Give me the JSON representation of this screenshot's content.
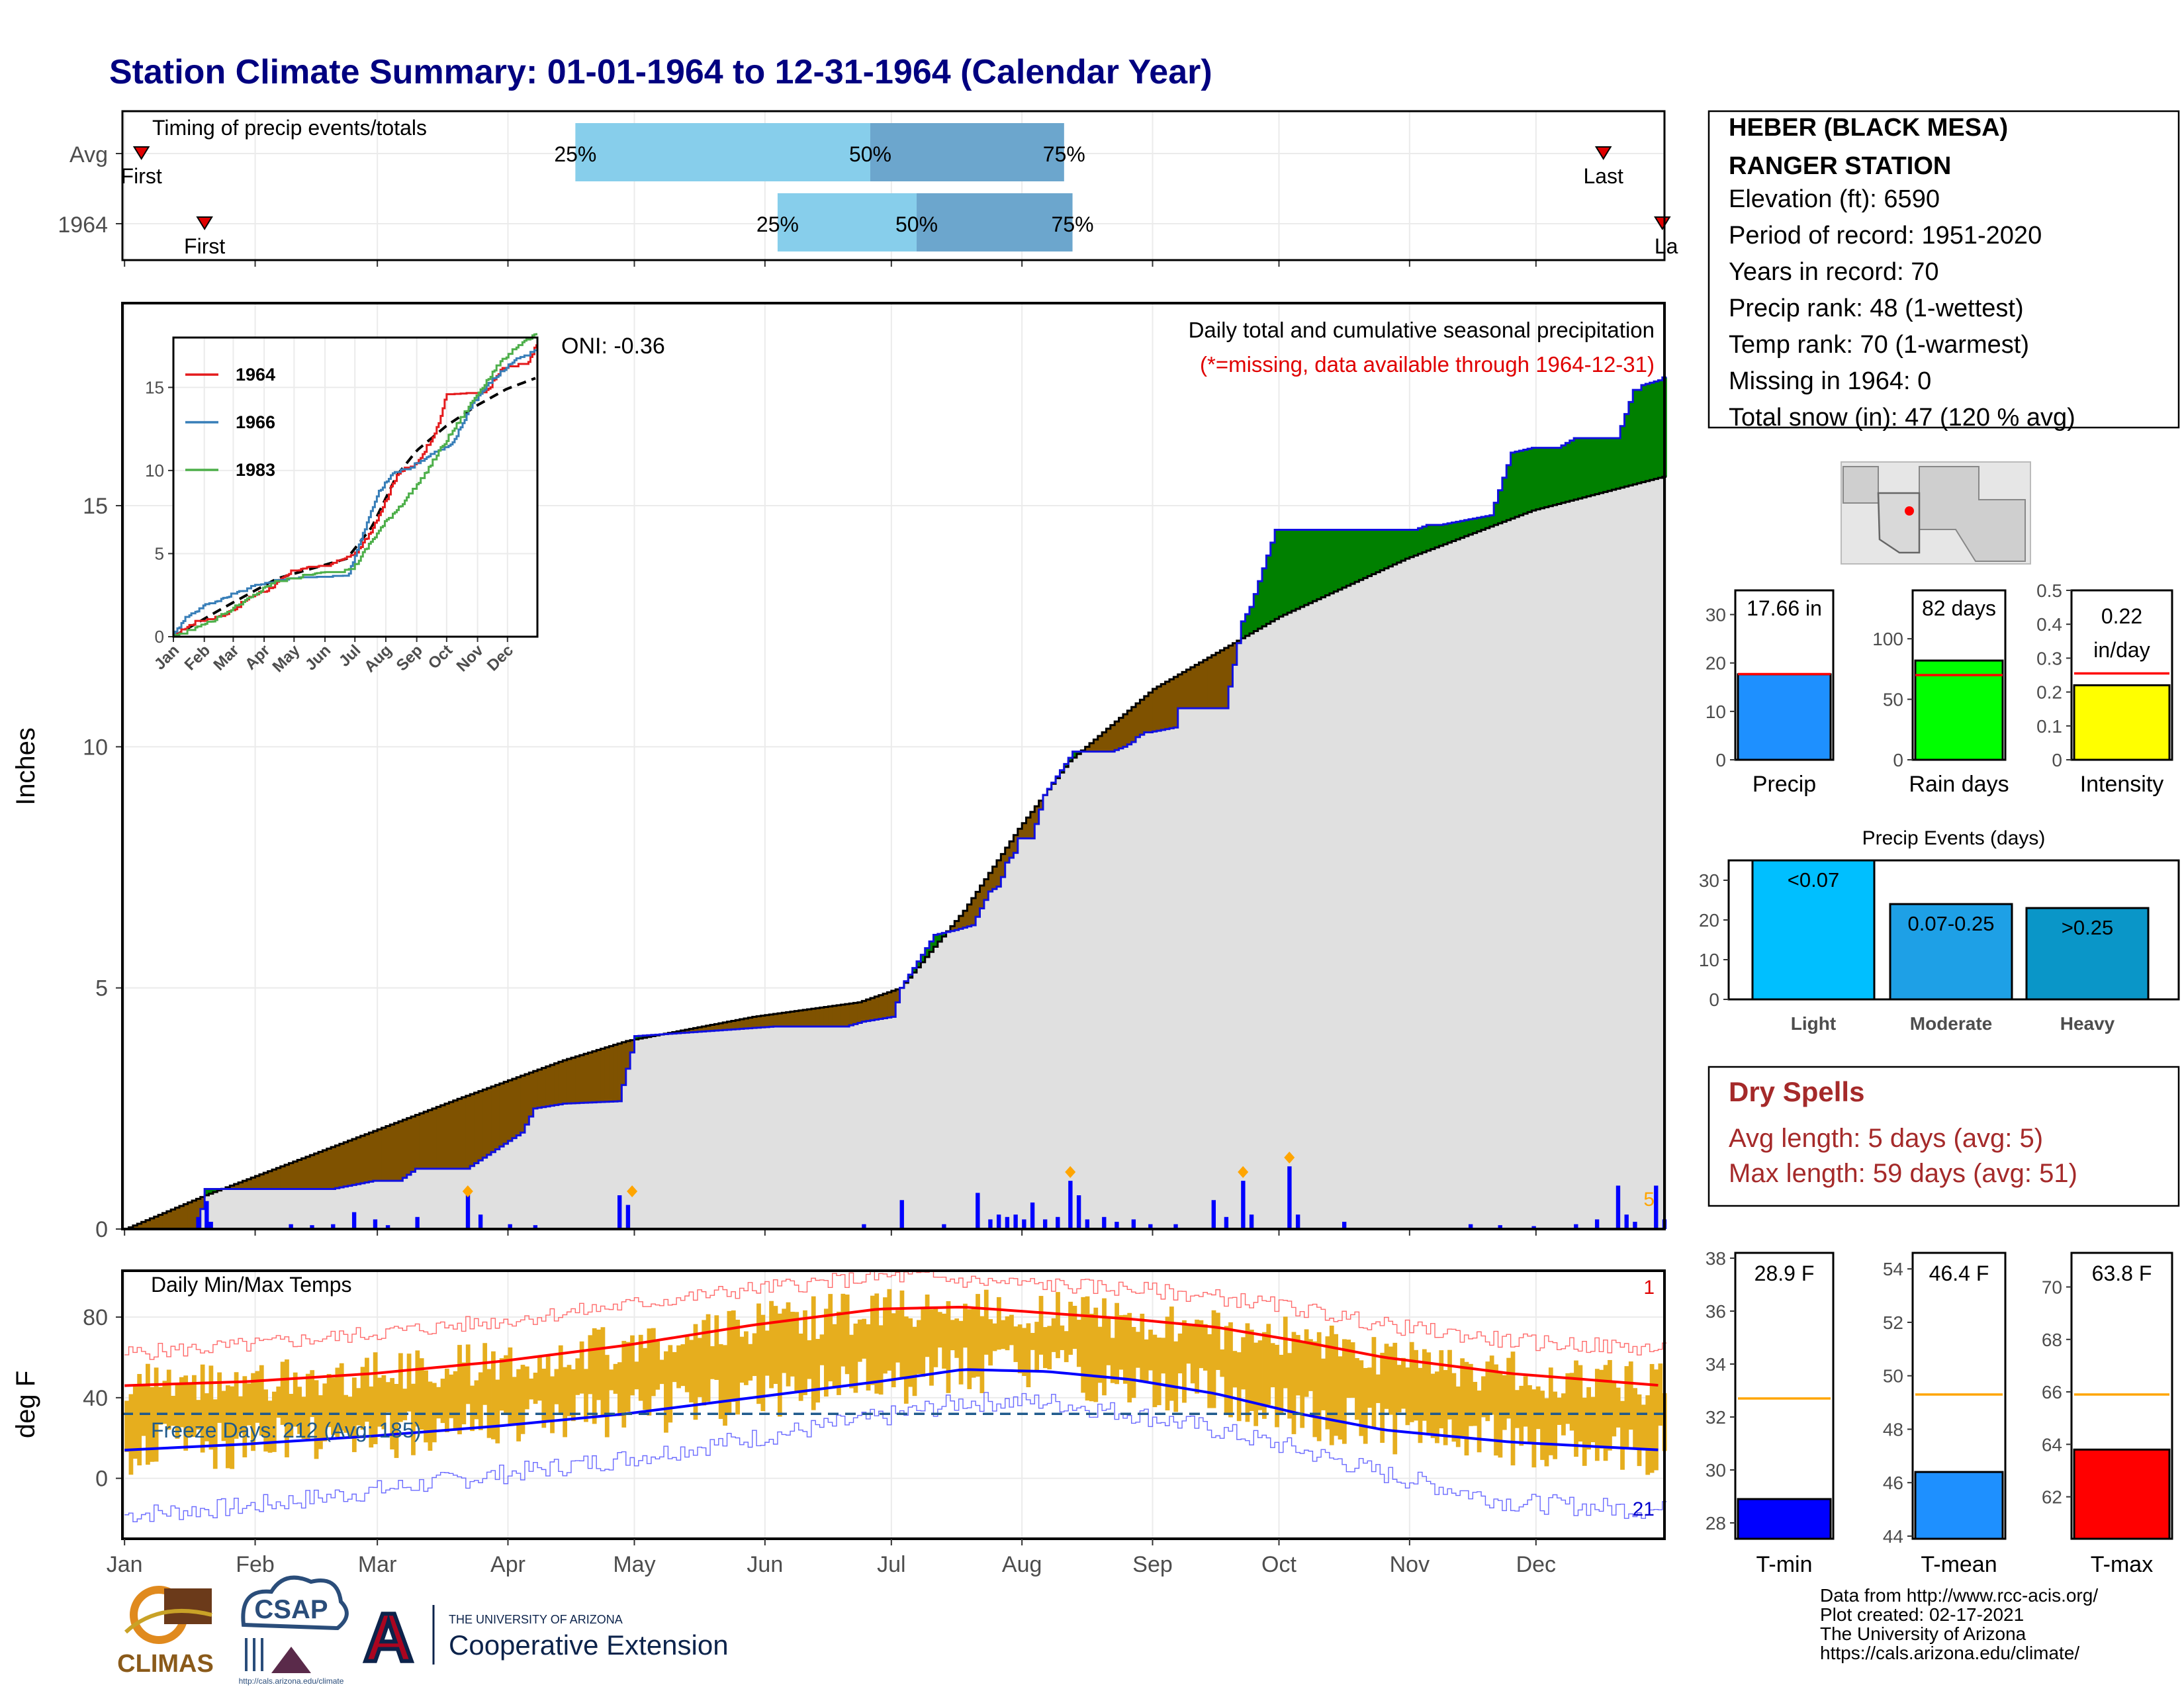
{
  "title": "Station Climate Summary: 01-01-1964 to 12-31-1964 (Calendar Year)",
  "colors": {
    "title": "#000080",
    "frost": "#e0e0e0",
    "above": "#008000",
    "below": "#7f5200",
    "precip_bar": "#0000ff",
    "light_blue": "#87ceeb",
    "mid_blue": "#6ca6cd",
    "temp_bar": "#e6ae1e",
    "tmax": "#ff0000",
    "tmin": "#0000ff",
    "freeze": "#1f5a8c",
    "rain_green": "#00ff00",
    "intensity_yellow": "#ffff00",
    "precip_blue": "#1e90ff",
    "events_blue": "#00bfff",
    "dry_red": "#a52a2a",
    "orange": "#ffa500"
  },
  "timing_panel": {
    "label": "Timing of precip events/totals",
    "rows": [
      {
        "name": "Avg",
        "first_doy": 5,
        "last_doy": 352,
        "p25": 108,
        "p50": 178,
        "p75": 224,
        "first_label": "First",
        "last_label": "Last"
      },
      {
        "name": "1964",
        "first_doy": 20,
        "last_doy": 366,
        "p25": 156,
        "p50": 189,
        "p75": 226,
        "first_label": "First",
        "last_label": "La"
      }
    ],
    "pct_labels": [
      "25%",
      "50%",
      "75%"
    ]
  },
  "precip_panel": {
    "ylabel": "Inches",
    "yticks": [
      0,
      5,
      10,
      15
    ],
    "ylim": [
      0,
      19.2
    ],
    "oni_label": "ONI: -0.36",
    "subtitle": "Daily total and cumulative seasonal precipitation",
    "missing_note": "(*=missing, data available through 1964-12-31)",
    "corner_label": "5",
    "normal_cumulative": {
      "doy": [
        1,
        20,
        50,
        80,
        105,
        120,
        150,
        175,
        185,
        200,
        213,
        225,
        245,
        275,
        305,
        335,
        366
      ],
      "inches": [
        0,
        0.7,
        1.7,
        2.7,
        3.5,
        3.9,
        4.4,
        4.7,
        5.0,
        6.6,
        8.3,
        9.7,
        11.2,
        12.7,
        13.9,
        14.9,
        15.6
      ]
    },
    "obs_cumulative": {
      "doy": [
        1,
        18,
        20,
        50,
        60,
        66,
        70,
        82,
        95,
        98,
        105,
        118,
        122,
        155,
        172,
        176,
        183,
        185,
        193,
        198,
        202,
        206,
        208,
        209,
        210,
        212,
        213,
        216,
        219,
        226,
        235,
        238,
        240,
        241,
        243,
        244,
        250,
        251,
        262,
        266,
        268,
        274,
        290,
        307,
        310,
        313,
        325,
        330,
        335,
        341,
        345,
        355,
        359,
        360,
        361,
        365,
        366
      ],
      "inches": [
        0,
        0,
        0.83,
        0.83,
        1.0,
        1.0,
        1.25,
        1.25,
        2.0,
        2.5,
        2.6,
        2.65,
        4.0,
        4.2,
        4.2,
        4.3,
        4.4,
        5.0,
        6.1,
        6.2,
        6.3,
        7.0,
        7.1,
        7.3,
        7.6,
        7.8,
        8.1,
        8.1,
        9.0,
        9.9,
        9.9,
        10.0,
        10.1,
        10.2,
        10.3,
        10.3,
        10.4,
        10.8,
        10.8,
        12.6,
        12.9,
        14.5,
        14.5,
        14.5,
        14.6,
        14.6,
        14.8,
        16.1,
        16.2,
        16.2,
        16.4,
        16.4,
        17.4,
        17.4,
        17.5,
        17.6,
        17.66
      ]
    },
    "daily_bars": [
      {
        "doy": 18,
        "in": 0.25
      },
      {
        "doy": 20,
        "in": 0.58
      },
      {
        "doy": 21,
        "in": 0.15
      },
      {
        "doy": 40,
        "in": 0.1
      },
      {
        "doy": 45,
        "in": 0.08
      },
      {
        "doy": 50,
        "in": 0.1
      },
      {
        "doy": 55,
        "in": 0.35
      },
      {
        "doy": 60,
        "in": 0.2
      },
      {
        "doy": 63,
        "in": 0.08
      },
      {
        "doy": 70,
        "in": 0.25
      },
      {
        "doy": 82,
        "in": 0.75
      },
      {
        "doy": 85,
        "in": 0.3
      },
      {
        "doy": 92,
        "in": 0.1
      },
      {
        "doy": 98,
        "in": 0.08
      },
      {
        "doy": 118,
        "in": 0.7
      },
      {
        "doy": 120,
        "in": 0.5
      },
      {
        "doy": 176,
        "in": 0.1
      },
      {
        "doy": 185,
        "in": 0.6
      },
      {
        "doy": 195,
        "in": 0.1
      },
      {
        "doy": 203,
        "in": 0.75
      },
      {
        "doy": 206,
        "in": 0.2
      },
      {
        "doy": 208,
        "in": 0.3
      },
      {
        "doy": 210,
        "in": 0.25
      },
      {
        "doy": 212,
        "in": 0.3
      },
      {
        "doy": 214,
        "in": 0.2
      },
      {
        "doy": 216,
        "in": 0.55
      },
      {
        "doy": 219,
        "in": 0.2
      },
      {
        "doy": 222,
        "in": 0.25
      },
      {
        "doy": 225,
        "in": 1.0
      },
      {
        "doy": 227,
        "in": 0.7
      },
      {
        "doy": 229,
        "in": 0.2
      },
      {
        "doy": 233,
        "in": 0.25
      },
      {
        "doy": 236,
        "in": 0.15
      },
      {
        "doy": 240,
        "in": 0.2
      },
      {
        "doy": 244,
        "in": 0.1
      },
      {
        "doy": 250,
        "in": 0.1
      },
      {
        "doy": 259,
        "in": 0.6
      },
      {
        "doy": 262,
        "in": 0.25
      },
      {
        "doy": 266,
        "in": 1.0
      },
      {
        "doy": 268,
        "in": 0.3
      },
      {
        "doy": 277,
        "in": 1.3
      },
      {
        "doy": 279,
        "in": 0.3
      },
      {
        "doy": 290,
        "in": 0.15
      },
      {
        "doy": 320,
        "in": 0.1
      },
      {
        "doy": 327,
        "in": 0.08
      },
      {
        "doy": 335,
        "in": 0.06
      },
      {
        "doy": 345,
        "in": 0.1
      },
      {
        "doy": 350,
        "in": 0.2
      },
      {
        "doy": 355,
        "in": 0.9
      },
      {
        "doy": 357,
        "in": 0.3
      },
      {
        "doy": 359,
        "in": 0.15
      },
      {
        "doy": 364,
        "in": 0.9
      },
      {
        "doy": 366,
        "in": 0.2
      }
    ],
    "record_markers": [
      {
        "doy": 82,
        "in": 0.7
      },
      {
        "doy": 121,
        "in": 0.7
      },
      {
        "doy": 225,
        "in": 1.1
      },
      {
        "doy": 266,
        "in": 1.1
      },
      {
        "doy": 277,
        "in": 1.4
      }
    ]
  },
  "inset": {
    "xticks": [
      "Jan",
      "Feb",
      "Mar",
      "Apr",
      "May",
      "Jun",
      "Jul",
      "Aug",
      "Sep",
      "Oct",
      "Nov",
      "Dec"
    ],
    "yticks": [
      0,
      5,
      10,
      15
    ],
    "ylim": [
      0,
      18
    ],
    "series": [
      {
        "name": "1964",
        "color": "#e41a1c",
        "doy": [
          1,
          20,
          50,
          82,
          98,
          122,
          155,
          185,
          200,
          213,
          226,
          244,
          266,
          274,
          313,
          330,
          355,
          366
        ],
        "inches": [
          0,
          0.8,
          1.2,
          2.5,
          2.9,
          4.0,
          4.2,
          5.0,
          6.5,
          8.1,
          9.9,
          10.3,
          12.6,
          14.5,
          14.6,
          16.1,
          16.4,
          17.6
        ]
      },
      {
        "name": "1966",
        "color": "#377eb8",
        "doy": [
          1,
          10,
          30,
          60,
          90,
          120,
          150,
          175,
          190,
          205,
          220,
          240,
          260,
          280,
          300,
          320,
          340,
          366
        ],
        "inches": [
          0,
          1.0,
          1.8,
          2.5,
          3.2,
          3.5,
          3.5,
          3.6,
          6.0,
          8.5,
          9.8,
          10.2,
          11.0,
          11.5,
          14.0,
          15.4,
          16.5,
          17.2
        ]
      },
      {
        "name": "1983",
        "color": "#4daf4a",
        "doy": [
          1,
          25,
          50,
          80,
          100,
          130,
          160,
          180,
          200,
          215,
          230,
          250,
          270,
          290,
          310,
          325,
          340,
          366
        ],
        "inches": [
          0,
          0.5,
          1.3,
          2.4,
          3.2,
          3.6,
          3.9,
          4.0,
          5.8,
          7.0,
          8.0,
          9.5,
          11.4,
          13.2,
          15.0,
          16.2,
          17.2,
          18.2
        ]
      }
    ],
    "normal": {
      "doy": [
        1,
        50,
        105,
        175,
        200,
        225,
        245,
        275,
        305,
        335,
        366
      ],
      "inches": [
        0,
        1.7,
        3.5,
        4.7,
        6.6,
        9.7,
        11.2,
        12.7,
        13.9,
        14.9,
        15.6
      ]
    }
  },
  "temp_panel": {
    "ylabel": "deg F",
    "yticks": [
      0,
      40,
      80
    ],
    "ylim": [
      -30,
      103
    ],
    "label": "Daily Min/Max Temps",
    "freeze_label": "Freeze Days: 212 (Avg: 185)",
    "freeze_line": 32,
    "corner_top": "1",
    "corner_bottom": "21",
    "tmax_normal": {
      "doy": [
        1,
        30,
        60,
        90,
        120,
        150,
        180,
        200,
        220,
        240,
        260,
        280,
        300,
        330,
        366
      ],
      "degF": [
        46,
        48,
        52,
        58,
        66,
        76,
        84,
        85,
        82,
        79,
        75,
        68,
        60,
        52,
        46
      ]
    },
    "tmin_normal": {
      "doy": [
        1,
        30,
        60,
        90,
        120,
        150,
        180,
        200,
        220,
        240,
        260,
        280,
        300,
        330,
        366
      ],
      "degF": [
        14,
        17,
        21,
        26,
        32,
        40,
        48,
        54,
        53,
        49,
        42,
        32,
        24,
        18,
        14
      ]
    },
    "tmax_record": {
      "doy": [
        1,
        30,
        60,
        90,
        120,
        150,
        180,
        190,
        200,
        220,
        240,
        260,
        280,
        300,
        330,
        366
      ],
      "degF": [
        62,
        66,
        72,
        78,
        86,
        94,
        100,
        100,
        98,
        96,
        94,
        90,
        84,
        76,
        68,
        64
      ]
    },
    "tmin_record": {
      "doy": [
        1,
        30,
        60,
        90,
        120,
        150,
        180,
        200,
        220,
        240,
        260,
        280,
        300,
        330,
        366
      ],
      "degF": [
        -18,
        -14,
        -6,
        2,
        10,
        20,
        30,
        38,
        38,
        32,
        24,
        14,
        2,
        -12,
        -16
      ]
    },
    "month_labels": [
      "Jan",
      "Feb",
      "Mar",
      "Apr",
      "May",
      "Jun",
      "Jul",
      "Aug",
      "Sep",
      "Oct",
      "Nov",
      "Dec"
    ]
  },
  "station_box": {
    "name_line1": "HEBER (BLACK MESA)",
    "name_line2": "RANGER STATION",
    "lines": [
      "Elevation (ft): 6590",
      "Period of record: 1951-2020",
      "Years in record: 70",
      "Precip rank: 48 (1-wettest)",
      "Temp rank: 70 (1-warmest)",
      "Missing in 1964: 0",
      "Total snow (in): 47 (120 % avg)"
    ]
  },
  "summary_bars": [
    {
      "name": "Precip",
      "value": 17.66,
      "label": "17.66 in",
      "avg": 17.7,
      "ymax": 35,
      "yticks": [
        0,
        10,
        20,
        30
      ],
      "color": "#1e90ff"
    },
    {
      "name": "Rain days",
      "value": 82,
      "label": "82 days",
      "avg": 70,
      "ymax": 140,
      "yticks": [
        0,
        50,
        100
      ],
      "color": "#00ff00"
    },
    {
      "name": "Intensity",
      "value": 0.22,
      "label_line1": "0.22",
      "label_line2": "in/day",
      "avg": 0.255,
      "ymax": 0.5,
      "yticks": [
        0.0,
        0.1,
        0.2,
        0.3,
        0.4,
        0.5
      ],
      "color": "#ffff00"
    }
  ],
  "events": {
    "title": "Precip Events (days)",
    "yticks": [
      0,
      10,
      20,
      30
    ],
    "ymax": 35,
    "bars": [
      {
        "name": "Light",
        "value": 35,
        "label": "<0.07",
        "color": "#00bfff"
      },
      {
        "name": "Moderate",
        "value": 24,
        "label": "0.07-0.25",
        "color": "#1ea0e6"
      },
      {
        "name": "Heavy",
        "value": 23,
        "label": ">0.25",
        "color": "#0a96c8"
      }
    ]
  },
  "dry_spells": {
    "title": "Dry Spells",
    "avg_line": "Avg length: 5 days (avg: 5)",
    "max_line": "Max length: 59 days (avg: 51)"
  },
  "temp_bars": [
    {
      "name": "T-min",
      "value": 28.9,
      "label": "28.9 F",
      "avg": 32.7,
      "ymin": 27.4,
      "ymax": 38.2,
      "yticks": [
        28,
        30,
        32,
        34,
        36,
        38
      ],
      "color": "#0000ff"
    },
    {
      "name": "T-mean",
      "value": 46.4,
      "label": "46.4 F",
      "avg": 49.3,
      "ymin": 43.9,
      "ymax": 54.6,
      "yticks": [
        44,
        46,
        48,
        50,
        52,
        54
      ],
      "color": "#1e90ff"
    },
    {
      "name": "T-max",
      "value": 63.8,
      "label": "63.8 F",
      "avg": 65.9,
      "ymin": 60.4,
      "ymax": 71.3,
      "yticks": [
        62,
        64,
        66,
        68,
        70
      ],
      "color": "#ff0000"
    }
  ],
  "footer": {
    "lines": [
      "Data from http://www.rcc-acis.org/",
      "Plot created: 02-17-2021",
      "The University of Arizona",
      "https://cals.arizona.edu/climate/"
    ],
    "logo1": "CLIMAS",
    "logo2": "CSAP",
    "logo2_url": "http://cals.arizona.edu/climate",
    "ua_small": "THE UNIVERSITY OF ARIZONA",
    "ua_big": "Cooperative Extension",
    "ua_mark": "A"
  }
}
